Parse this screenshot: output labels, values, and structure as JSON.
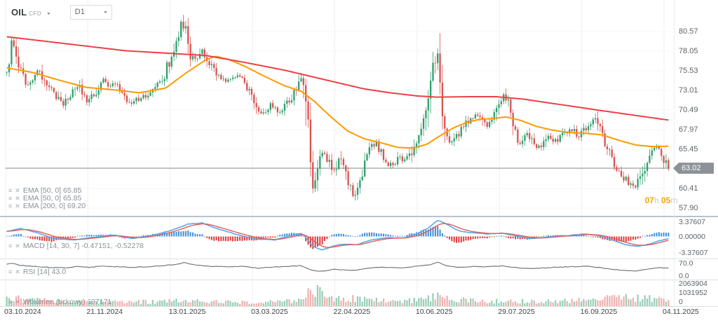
{
  "window": {
    "symbol": "OIL",
    "symbol_type": "CFD",
    "timeframe": "D1"
  },
  "icons": {
    "settings": "≡",
    "close": "✕",
    "caret": "▾"
  },
  "countdown": {
    "hours": "07",
    "hours_unit": "h",
    "minutes": "05",
    "minutes_unit": "m"
  },
  "price_axis": {
    "current_label": "63.02",
    "current_value": 63.02,
    "ticks": [
      {
        "label": "80.57",
        "value": 80.57
      },
      {
        "label": "78.05",
        "value": 78.05
      },
      {
        "label": "75.53",
        "value": 75.53
      },
      {
        "label": "73.01",
        "value": 73.01
      },
      {
        "label": "70.49",
        "value": 70.49
      },
      {
        "label": "67.97",
        "value": 67.97
      },
      {
        "label": "65.45",
        "value": 65.45
      },
      {
        "label": "60.41",
        "value": 60.41
      },
      {
        "label": "57.90",
        "value": 57.9
      }
    ]
  },
  "time_axis": {
    "labels": [
      "03.10.2024",
      "21.11.2024",
      "13.01.2025",
      "03.03.2025",
      "22.04.2025",
      "10.06.2025",
      "29.07.2025",
      "16.09.2025",
      "04.11.2025"
    ]
  },
  "indicators": {
    "emas": [
      {
        "text": "EMA [50, 0] 65.85"
      },
      {
        "text": "EMA [50, 0] 65.85"
      },
      {
        "text": "EMA [200, 0] 69.20"
      }
    ],
    "macd": {
      "text": "MACD [14, 30, 7] -0.47151, -0.52278",
      "axis": [
        "3.37607",
        "0.00000",
        "-3.37607"
      ]
    },
    "rsi": {
      "text": "RSI [14] 43.0",
      "axis": [
        "70.0",
        "0.0"
      ]
    },
    "volume": {
      "text": "Wolumen (tickowy) 597171",
      "axis": [
        "2063904",
        "1031952",
        "0"
      ]
    }
  },
  "colors": {
    "bull": "#2f9e6e",
    "bear": "#d9524e",
    "ema_fast": "#ff9a00",
    "ema_slow": "#ec4046",
    "macd_line": "#5aa7e6",
    "macd_signal": "#e25b5b",
    "hist_pos": "#3d8fd8",
    "hist_neg": "#dc3c3c",
    "rsi_line": "#686d73",
    "price_line": "#a0a7ad",
    "badge_bg": "#8d9298",
    "countdown_accent": "#f7a600"
  },
  "chart_data": {
    "type": "candlestick",
    "title": "OIL CFD, D1",
    "candle_count": 282,
    "price_range": [
      57.9,
      80.57
    ],
    "last_close": 63.02,
    "price_path": [
      [
        0,
        75.3
      ],
      [
        0.004,
        78.2
      ],
      [
        0.008,
        79.9
      ],
      [
        0.014,
        77.6
      ],
      [
        0.022,
        75.2
      ],
      [
        0.03,
        73.4
      ],
      [
        0.04,
        74.6
      ],
      [
        0.05,
        75.6
      ],
      [
        0.06,
        73.6
      ],
      [
        0.072,
        72.6
      ],
      [
        0.085,
        71.2
      ],
      [
        0.098,
        72.4
      ],
      [
        0.108,
        73.8
      ],
      [
        0.12,
        71.6
      ],
      [
        0.132,
        72.4
      ],
      [
        0.143,
        74.4
      ],
      [
        0.152,
        73.4
      ],
      [
        0.163,
        73.9
      ],
      [
        0.175,
        72.4
      ],
      [
        0.186,
        71.3
      ],
      [
        0.198,
        71.9
      ],
      [
        0.21,
        72.4
      ],
      [
        0.222,
        73.4
      ],
      [
        0.235,
        74.3
      ],
      [
        0.247,
        77.0
      ],
      [
        0.256,
        79.2
      ],
      [
        0.263,
        82.2
      ],
      [
        0.27,
        81.0
      ],
      [
        0.278,
        77.6
      ],
      [
        0.287,
        77.1
      ],
      [
        0.295,
        78.3
      ],
      [
        0.307,
        76.2
      ],
      [
        0.32,
        74.9
      ],
      [
        0.332,
        74.3
      ],
      [
        0.345,
        74.9
      ],
      [
        0.357,
        74.4
      ],
      [
        0.368,
        72.9
      ],
      [
        0.38,
        69.9
      ],
      [
        0.39,
        70.3
      ],
      [
        0.4,
        71.3
      ],
      [
        0.412,
        70.2
      ],
      [
        0.425,
        71.4
      ],
      [
        0.436,
        73.0
      ],
      [
        0.445,
        74.9
      ],
      [
        0.452,
        70.6
      ],
      [
        0.458,
        64.4
      ],
      [
        0.464,
        60.2
      ],
      [
        0.47,
        63.2
      ],
      [
        0.478,
        64.9
      ],
      [
        0.487,
        64.0
      ],
      [
        0.495,
        62.6
      ],
      [
        0.503,
        64.4
      ],
      [
        0.511,
        62.2
      ],
      [
        0.519,
        60.3
      ],
      [
        0.526,
        59.3
      ],
      [
        0.533,
        61.6
      ],
      [
        0.541,
        63.5
      ],
      [
        0.549,
        65.6
      ],
      [
        0.558,
        66.3
      ],
      [
        0.567,
        64.6
      ],
      [
        0.576,
        63.6
      ],
      [
        0.585,
        63.4
      ],
      [
        0.594,
        64.4
      ],
      [
        0.603,
        63.9
      ],
      [
        0.612,
        65.3
      ],
      [
        0.622,
        67.3
      ],
      [
        0.631,
        69.3
      ],
      [
        0.64,
        74.3
      ],
      [
        0.648,
        77.3
      ],
      [
        0.653,
        78.7
      ],
      [
        0.658,
        70.9
      ],
      [
        0.664,
        67.1
      ],
      [
        0.672,
        66.2
      ],
      [
        0.682,
        67.3
      ],
      [
        0.693,
        68.6
      ],
      [
        0.703,
        69.7
      ],
      [
        0.714,
        70.0
      ],
      [
        0.724,
        68.4
      ],
      [
        0.734,
        68.9
      ],
      [
        0.743,
        71.3
      ],
      [
        0.75,
        72.4
      ],
      [
        0.758,
        71.0
      ],
      [
        0.766,
        68.1
      ],
      [
        0.776,
        66.3
      ],
      [
        0.787,
        67.4
      ],
      [
        0.797,
        66.1
      ],
      [
        0.808,
        65.4
      ],
      [
        0.819,
        67.2
      ],
      [
        0.83,
        66.5
      ],
      [
        0.842,
        67.4
      ],
      [
        0.853,
        68.1
      ],
      [
        0.864,
        67.1
      ],
      [
        0.876,
        68.2
      ],
      [
        0.888,
        69.5
      ],
      [
        0.899,
        67.2
      ],
      [
        0.909,
        65.1
      ],
      [
        0.919,
        63.4
      ],
      [
        0.93,
        62.1
      ],
      [
        0.941,
        61.1
      ],
      [
        0.951,
        60.6
      ],
      [
        0.961,
        62.4
      ],
      [
        0.971,
        65.0
      ],
      [
        0.979,
        65.8
      ],
      [
        0.987,
        64.9
      ],
      [
        0.994,
        64.1
      ],
      [
        1,
        63.1
      ]
    ],
    "ema50_path": [
      [
        0,
        75.9
      ],
      [
        0.04,
        75.3
      ],
      [
        0.08,
        74.3
      ],
      [
        0.12,
        73.4
      ],
      [
        0.16,
        73.1
      ],
      [
        0.2,
        72.7
      ],
      [
        0.24,
        73.3
      ],
      [
        0.27,
        75.2
      ],
      [
        0.3,
        76.9
      ],
      [
        0.315,
        77.4
      ],
      [
        0.335,
        77.0
      ],
      [
        0.36,
        76.1
      ],
      [
        0.39,
        74.8
      ],
      [
        0.42,
        73.6
      ],
      [
        0.445,
        72.9
      ],
      [
        0.465,
        71.6
      ],
      [
        0.49,
        69.6
      ],
      [
        0.515,
        67.8
      ],
      [
        0.54,
        66.8
      ],
      [
        0.565,
        66.3
      ],
      [
        0.59,
        65.7
      ],
      [
        0.615,
        65.6
      ],
      [
        0.635,
        66.1
      ],
      [
        0.655,
        67.2
      ],
      [
        0.675,
        68.2
      ],
      [
        0.695,
        68.9
      ],
      [
        0.715,
        69.3
      ],
      [
        0.735,
        69.4
      ],
      [
        0.755,
        69.6
      ],
      [
        0.775,
        69.2
      ],
      [
        0.8,
        68.4
      ],
      [
        0.825,
        67.9
      ],
      [
        0.85,
        67.6
      ],
      [
        0.875,
        67.5
      ],
      [
        0.9,
        67.3
      ],
      [
        0.925,
        66.6
      ],
      [
        0.95,
        66.0
      ],
      [
        0.975,
        65.8
      ],
      [
        1,
        65.85
      ]
    ],
    "ema200_path": [
      [
        0,
        79.9
      ],
      [
        0.06,
        79.3
      ],
      [
        0.12,
        78.7
      ],
      [
        0.18,
        78.1
      ],
      [
        0.24,
        77.8
      ],
      [
        0.3,
        77.5
      ],
      [
        0.36,
        76.6
      ],
      [
        0.42,
        75.6
      ],
      [
        0.46,
        74.8
      ],
      [
        0.5,
        74.0
      ],
      [
        0.54,
        73.2
      ],
      [
        0.58,
        72.7
      ],
      [
        0.62,
        72.3
      ],
      [
        0.65,
        72.15
      ],
      [
        0.7,
        72.2
      ],
      [
        0.74,
        72.2
      ],
      [
        0.78,
        71.9
      ],
      [
        0.82,
        71.4
      ],
      [
        0.86,
        70.9
      ],
      [
        0.9,
        70.4
      ],
      [
        0.95,
        69.8
      ],
      [
        1,
        69.2
      ]
    ],
    "macd_range": [
      -3.37607,
      3.37607
    ],
    "macd_path": [
      [
        0,
        1.0
      ],
      [
        0.02,
        1.6
      ],
      [
        0.045,
        0.8
      ],
      [
        0.07,
        -0.4
      ],
      [
        0.1,
        -0.7
      ],
      [
        0.13,
        -0.2
      ],
      [
        0.16,
        0.3
      ],
      [
        0.19,
        -0.4
      ],
      [
        0.22,
        0.2
      ],
      [
        0.25,
        1.3
      ],
      [
        0.275,
        2.5
      ],
      [
        0.295,
        2.7
      ],
      [
        0.315,
        1.7
      ],
      [
        0.345,
        0.5
      ],
      [
        0.375,
        -0.5
      ],
      [
        0.405,
        -0.7
      ],
      [
        0.43,
        0.2
      ],
      [
        0.447,
        0.6
      ],
      [
        0.462,
        -1.9
      ],
      [
        0.477,
        -2.7
      ],
      [
        0.493,
        -1.9
      ],
      [
        0.51,
        -1.5
      ],
      [
        0.528,
        -1.7
      ],
      [
        0.55,
        -0.7
      ],
      [
        0.575,
        -0.25
      ],
      [
        0.6,
        -0.3
      ],
      [
        0.62,
        0.5
      ],
      [
        0.638,
        1.8
      ],
      [
        0.652,
        3.25
      ],
      [
        0.665,
        2.4
      ],
      [
        0.685,
        1.0
      ],
      [
        0.705,
        0.7
      ],
      [
        0.725,
        0.5
      ],
      [
        0.748,
        0.7
      ],
      [
        0.77,
        0.1
      ],
      [
        0.79,
        -0.4
      ],
      [
        0.81,
        -0.25
      ],
      [
        0.83,
        0.05
      ],
      [
        0.85,
        0.2
      ],
      [
        0.875,
        0.5
      ],
      [
        0.895,
        0.2
      ],
      [
        0.915,
        -0.7
      ],
      [
        0.935,
        -1.6
      ],
      [
        0.952,
        -2.0
      ],
      [
        0.968,
        -1.6
      ],
      [
        0.985,
        -0.9
      ],
      [
        1,
        -0.47
      ]
    ],
    "rsi_range": [
      0,
      70
    ],
    "rsi_last": 43.0,
    "rsi_path": [
      [
        0,
        63
      ],
      [
        0.008,
        69
      ],
      [
        0.02,
        58
      ],
      [
        0.04,
        52
      ],
      [
        0.065,
        46
      ],
      [
        0.09,
        44
      ],
      [
        0.108,
        52
      ],
      [
        0.125,
        46
      ],
      [
        0.143,
        54
      ],
      [
        0.163,
        51
      ],
      [
        0.186,
        46
      ],
      [
        0.21,
        50
      ],
      [
        0.235,
        55
      ],
      [
        0.256,
        63
      ],
      [
        0.268,
        72
      ],
      [
        0.285,
        60
      ],
      [
        0.307,
        53
      ],
      [
        0.332,
        50
      ],
      [
        0.357,
        52
      ],
      [
        0.38,
        42
      ],
      [
        0.4,
        48
      ],
      [
        0.425,
        52
      ],
      [
        0.445,
        56
      ],
      [
        0.462,
        30
      ],
      [
        0.477,
        26
      ],
      [
        0.495,
        36
      ],
      [
        0.515,
        32
      ],
      [
        0.528,
        30
      ],
      [
        0.549,
        44
      ],
      [
        0.567,
        48
      ],
      [
        0.585,
        44
      ],
      [
        0.603,
        46
      ],
      [
        0.622,
        53
      ],
      [
        0.64,
        62
      ],
      [
        0.652,
        74
      ],
      [
        0.665,
        55
      ],
      [
        0.685,
        46
      ],
      [
        0.705,
        52
      ],
      [
        0.725,
        49
      ],
      [
        0.748,
        55
      ],
      [
        0.77,
        45
      ],
      [
        0.79,
        41
      ],
      [
        0.81,
        43
      ],
      [
        0.83,
        47
      ],
      [
        0.853,
        50
      ],
      [
        0.876,
        53
      ],
      [
        0.895,
        46
      ],
      [
        0.915,
        37
      ],
      [
        0.935,
        30
      ],
      [
        0.952,
        27
      ],
      [
        0.968,
        38
      ],
      [
        0.985,
        45
      ],
      [
        1,
        43
      ]
    ],
    "volume_range": [
      0,
      2063904
    ],
    "volume_path_millions": [
      [
        0,
        0.95
      ],
      [
        0.03,
        0.7
      ],
      [
        0.07,
        0.55
      ],
      [
        0.12,
        0.5
      ],
      [
        0.17,
        0.45
      ],
      [
        0.22,
        0.5
      ],
      [
        0.26,
        0.6
      ],
      [
        0.3,
        0.5
      ],
      [
        0.35,
        0.42
      ],
      [
        0.4,
        0.45
      ],
      [
        0.44,
        0.55
      ],
      [
        0.452,
        1.1
      ],
      [
        0.462,
        2.0
      ],
      [
        0.475,
        1.3
      ],
      [
        0.5,
        0.85
      ],
      [
        0.53,
        0.8
      ],
      [
        0.57,
        0.6
      ],
      [
        0.61,
        0.6
      ],
      [
        0.637,
        0.85
      ],
      [
        0.652,
        1.25
      ],
      [
        0.67,
        0.95
      ],
      [
        0.7,
        0.6
      ],
      [
        0.73,
        0.55
      ],
      [
        0.76,
        0.6
      ],
      [
        0.8,
        0.5
      ],
      [
        0.84,
        0.55
      ],
      [
        0.87,
        0.65
      ],
      [
        0.9,
        0.8
      ],
      [
        0.92,
        1.0
      ],
      [
        0.94,
        0.85
      ],
      [
        0.96,
        0.9
      ],
      [
        0.98,
        0.75
      ],
      [
        1,
        0.6
      ]
    ]
  }
}
